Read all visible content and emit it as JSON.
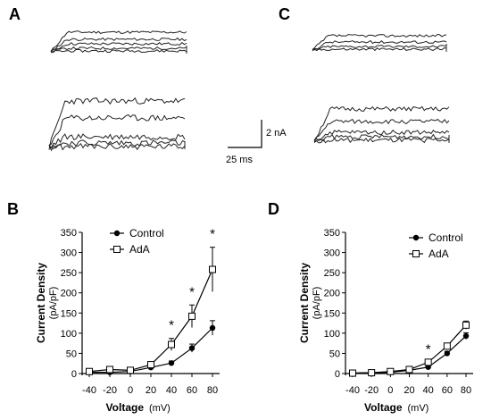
{
  "panels": {
    "a_letter": "A",
    "b_letter": "B",
    "c_letter": "C",
    "d_letter": "D"
  },
  "scale_bar": {
    "vertical_label": "2 nA",
    "horizontal_label": "25 ms"
  },
  "chart_data": [
    {
      "type": "line",
      "panel": "B",
      "x": [
        -40,
        -20,
        0,
        20,
        40,
        60,
        80
      ],
      "xticks": [
        "-40",
        "-20",
        "0",
        "20",
        "40",
        "60",
        "80"
      ],
      "yticks": [
        "0",
        "50",
        "100",
        "150",
        "200",
        "250",
        "300",
        "350"
      ],
      "xlim": [
        -40,
        80
      ],
      "ylim": [
        0,
        350
      ],
      "xlabel_main": "Voltage",
      "xlabel_unit": "(mV)",
      "ylabel_main": "Current Density",
      "ylabel_unit": "(pA/pF)",
      "legend_position": "top-center",
      "series": [
        {
          "name": "Control",
          "marker": "filled-circle",
          "values": [
            3,
            3,
            5,
            15,
            26,
            63,
            113
          ],
          "errors": [
            2,
            2,
            3,
            4,
            5,
            10,
            18
          ]
        },
        {
          "name": "AdA",
          "marker": "open-square",
          "values": [
            5,
            10,
            8,
            22,
            72,
            142,
            258
          ],
          "errors": [
            2,
            3,
            4,
            6,
            15,
            28,
            55
          ]
        }
      ],
      "significance": {
        "symbol": "*",
        "at_x": [
          40,
          60,
          80
        ]
      }
    },
    {
      "type": "line",
      "panel": "D",
      "x": [
        -40,
        -20,
        0,
        20,
        40,
        60,
        80
      ],
      "xticks": [
        "-40",
        "-20",
        "0",
        "20",
        "40",
        "60",
        "80"
      ],
      "yticks": [
        "0",
        "50",
        "100",
        "150",
        "200",
        "250",
        "300",
        "350"
      ],
      "xlim": [
        -40,
        80
      ],
      "ylim": [
        0,
        350
      ],
      "xlabel_main": "Voltage",
      "xlabel_unit": "(mV)",
      "ylabel_main": "Current Density",
      "ylabel_unit": "(pA/pF)",
      "legend_position": "top-right",
      "series": [
        {
          "name": "Control",
          "marker": "filled-circle",
          "values": [
            1,
            2,
            3,
            8,
            16,
            50,
            93
          ],
          "errors": [
            1,
            1,
            1,
            2,
            3,
            5,
            8
          ]
        },
        {
          "name": "AdA",
          "marker": "open-square",
          "values": [
            1,
            2,
            5,
            10,
            28,
            68,
            120
          ],
          "errors": [
            1,
            1,
            1,
            2,
            4,
            6,
            10
          ]
        }
      ],
      "significance": {
        "symbol": "*",
        "at_x": [
          40
        ]
      }
    }
  ]
}
